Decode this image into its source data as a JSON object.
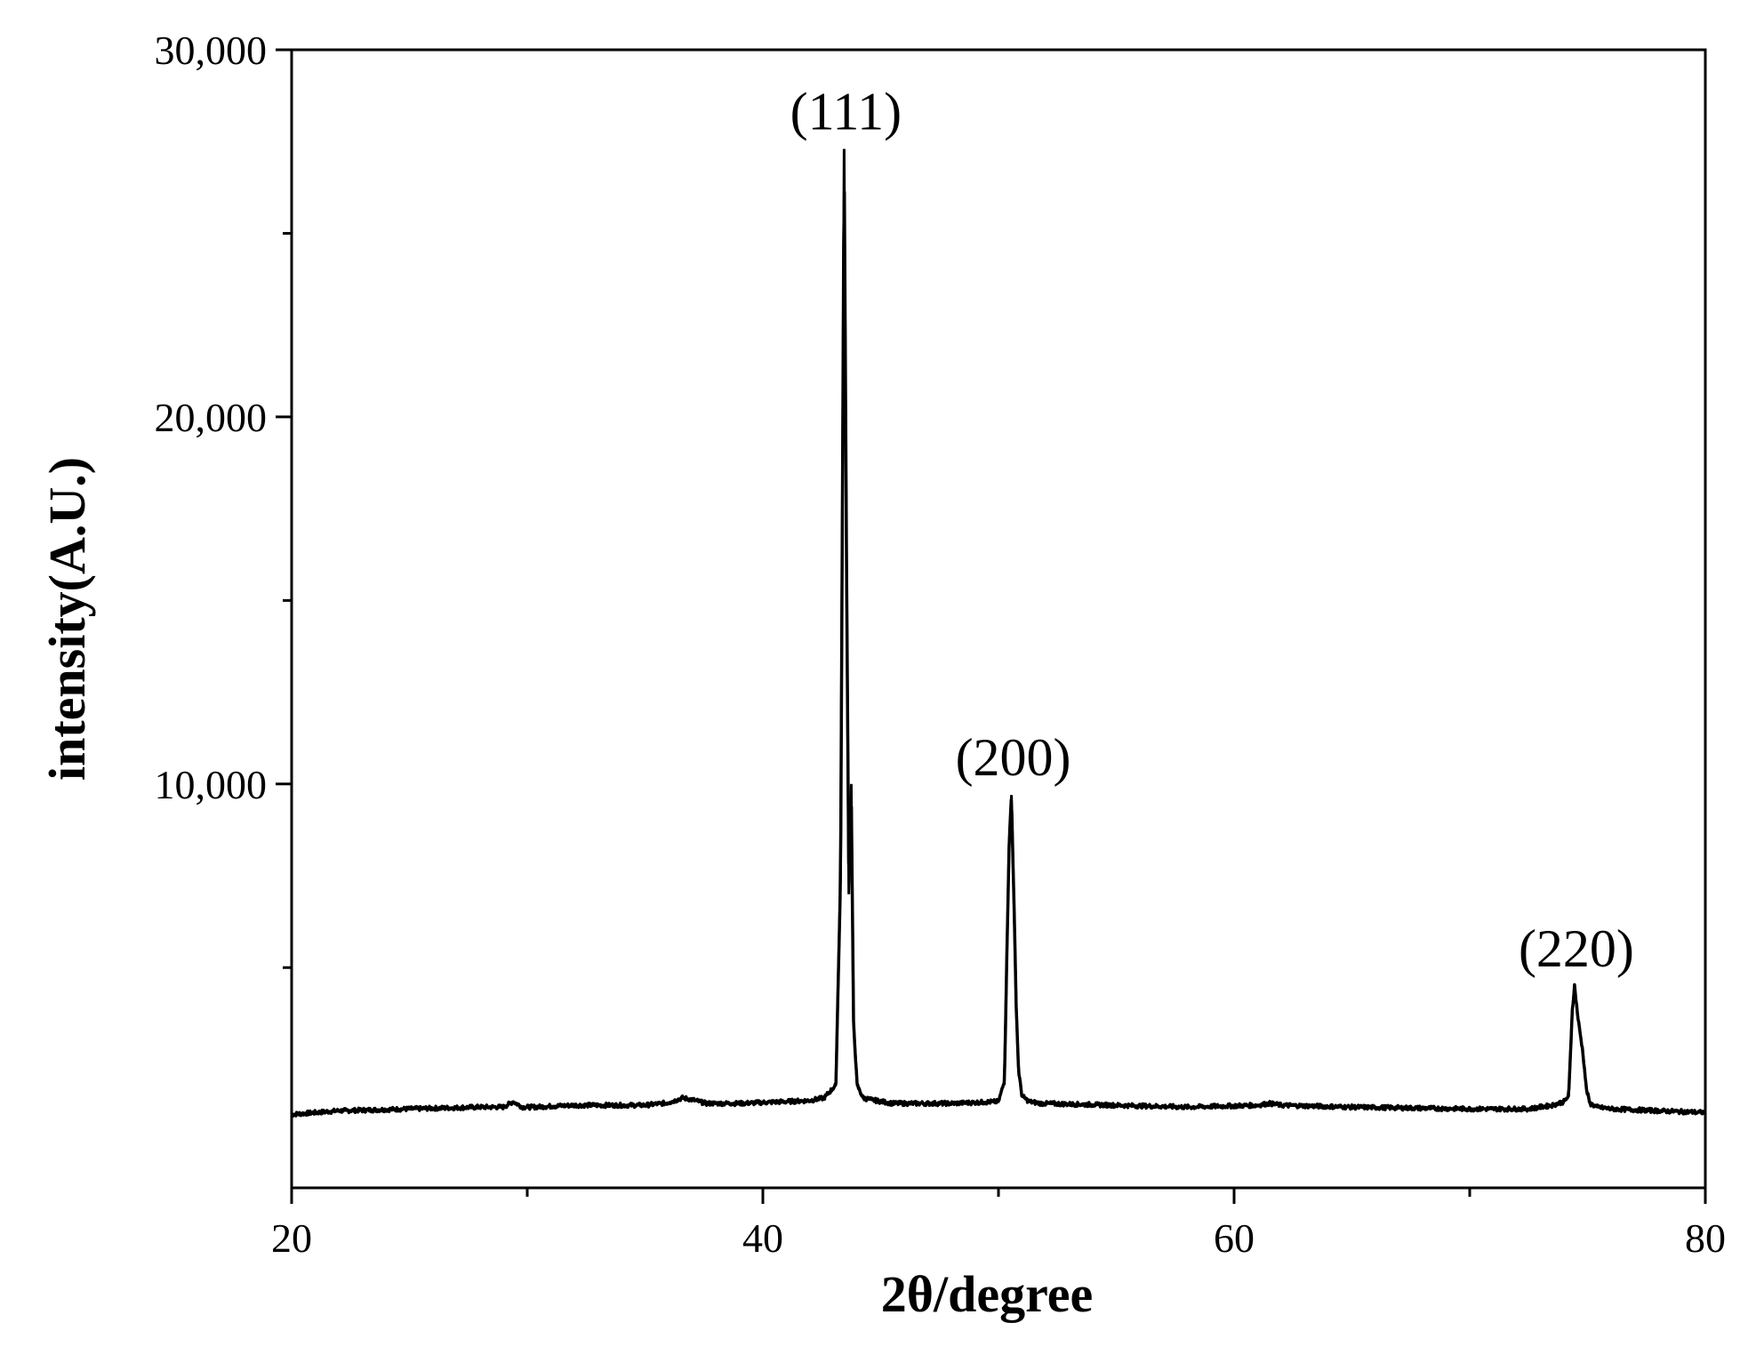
{
  "chart_data": {
    "type": "line",
    "title": "",
    "xlabel": "2θ/degree",
    "ylabel": "intensity(A.U.)",
    "xlim": [
      20,
      80
    ],
    "ylim": [
      0,
      30000
    ],
    "x_ticks": [
      "20",
      "40",
      "60",
      "80"
    ],
    "y_ticks": [
      "10,000",
      "20,000",
      "30,000"
    ],
    "grid": false,
    "legend": "none",
    "line_color": "#000000",
    "series": [
      {
        "x": [
          20,
          22,
          25,
          28,
          29.0,
          29.4,
          29.8,
          30.2,
          32,
          35,
          36.0,
          36.6,
          37.0,
          37.6,
          39,
          41,
          42.0,
          42.6,
          43.1,
          43.3,
          43.45,
          43.55,
          43.65,
          43.75,
          43.85,
          44.0,
          44.25,
          44.6,
          45.5,
          48,
          50.0,
          50.25,
          50.45,
          50.55,
          50.65,
          50.75,
          50.85,
          51.0,
          51.3,
          51.8,
          55,
          58,
          61.0,
          61.5,
          62.0,
          65,
          70,
          72.5,
          73.5,
          74.0,
          74.2,
          74.35,
          74.45,
          74.6,
          74.8,
          74.95,
          75.1,
          75.4,
          76,
          78,
          80
        ],
        "y": [
          1000,
          1100,
          1150,
          1200,
          1200,
          1350,
          1200,
          1200,
          1250,
          1250,
          1320,
          1450,
          1400,
          1300,
          1300,
          1350,
          1380,
          1450,
          1800,
          7500,
          27300,
          16000,
          7000,
          10000,
          3500,
          1800,
          1450,
          1400,
          1300,
          1300,
          1350,
          1900,
          8300,
          9700,
          7000,
          4000,
          2200,
          1500,
          1350,
          1300,
          1250,
          1200,
          1250,
          1300,
          1250,
          1200,
          1150,
          1150,
          1250,
          1350,
          1500,
          3800,
          4500,
          3600,
          2700,
          1700,
          1300,
          1200,
          1150,
          1100,
          1050
        ]
      }
    ],
    "annotations": [
      {
        "text": "(111)",
        "x": 43.45,
        "y": 27300
      },
      {
        "text": "(200)",
        "x": 50.55,
        "y": 9700
      },
      {
        "text": "(220)",
        "x": 74.45,
        "y": 4500
      }
    ]
  }
}
